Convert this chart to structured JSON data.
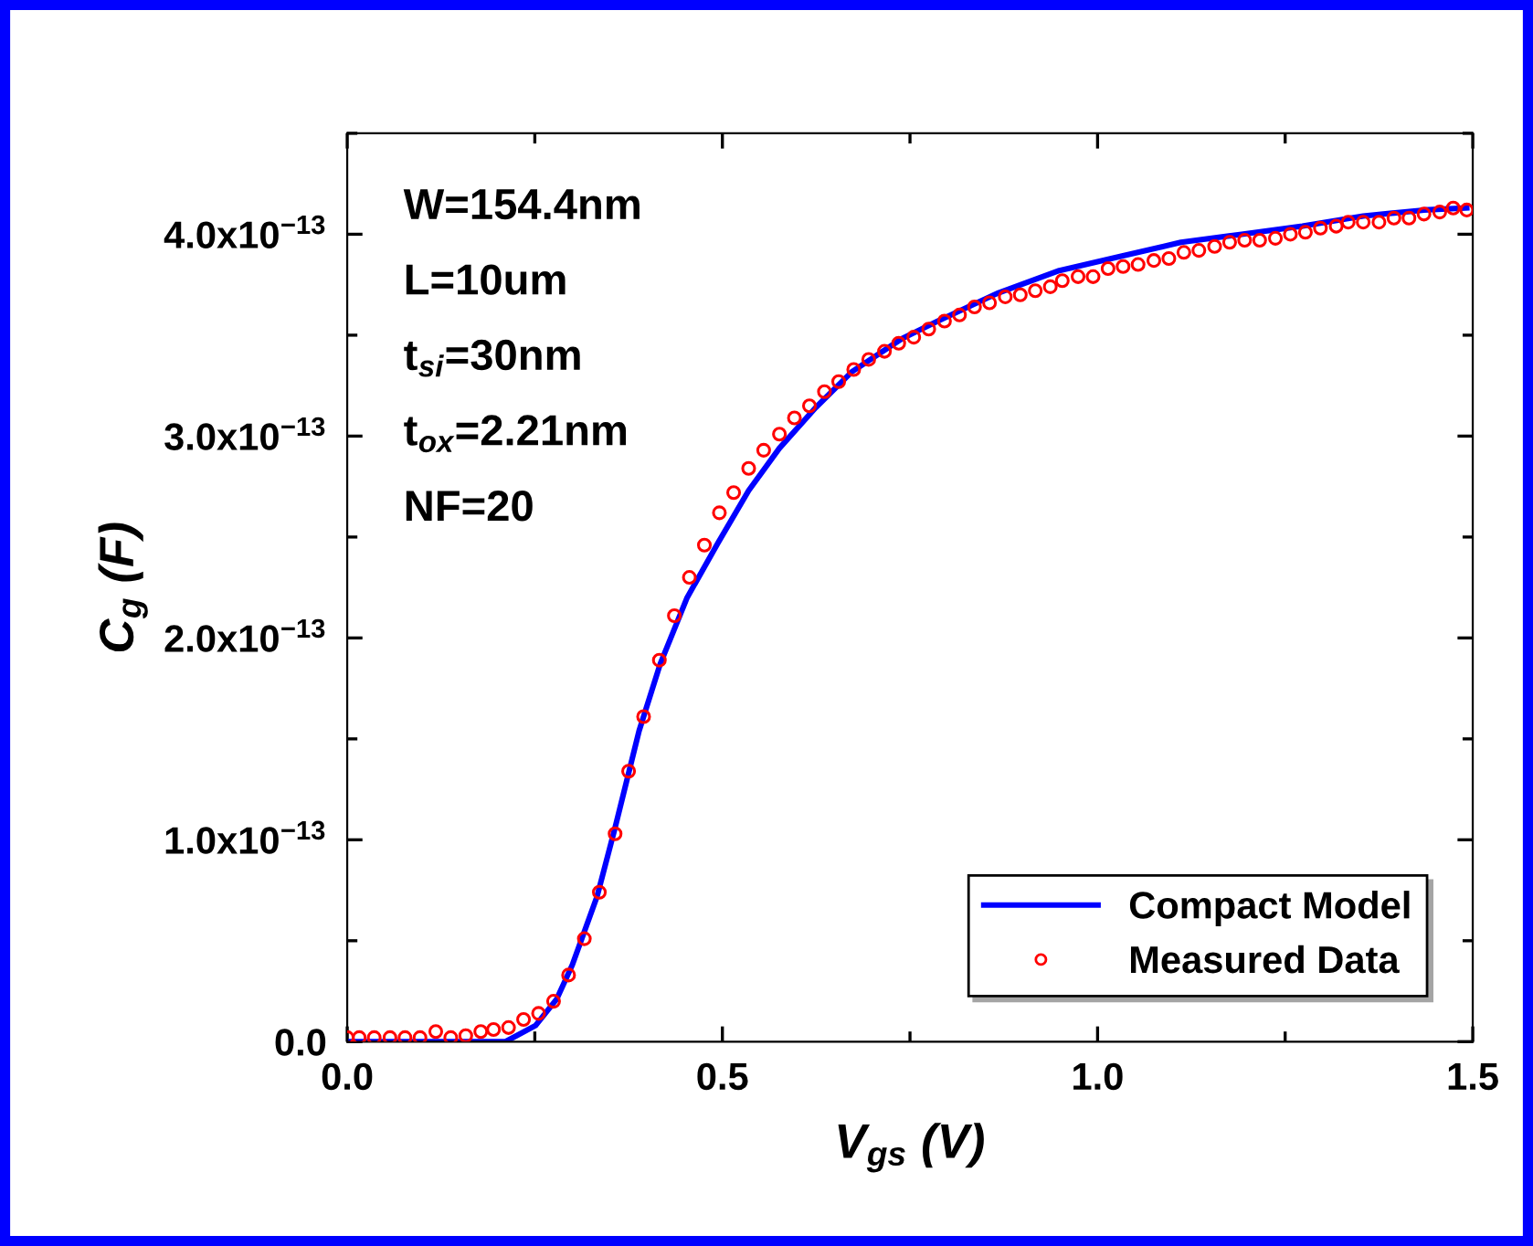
{
  "chart_data": {
    "type": "line",
    "xlabel": "V$_{gs}$ (V)",
    "ylabel": "C$_{g}$ (F)",
    "xlim": [
      0,
      1.5
    ],
    "xticks": [
      {
        "value": 0,
        "label": "0.0"
      },
      0.5,
      {
        "value": 1.0,
        "label": "1.0"
      },
      1.5
    ],
    "ylim": [
      0,
      4.5e-13
    ],
    "yticks": [
      {
        "value": 0,
        "label": "0.0"
      },
      {
        "value": 1e-13,
        "label": "1.0x10$^{−13}$"
      },
      {
        "value": 2e-13,
        "label": "2.0x10$^{−13}$"
      },
      {
        "value": 3e-13,
        "label": "3.0x10$^{−13}$"
      },
      {
        "value": 4e-13,
        "label": "4.0x10$^{−13}$"
      }
    ],
    "grid": false,
    "legend": "bottom right",
    "annotations": [
      "W=154.4nm",
      "L=10um",
      "t$_{si}$=30nm",
      "t$_{ox}$=2.21nm",
      "NF=20"
    ],
    "series": [
      {
        "name": "Compact Model",
        "color": "#0000ff",
        "marker": "none",
        "line_style": "solid",
        "x": [
          0,
          0.1,
          0.211,
          0.251,
          0.279,
          0.3,
          0.333,
          0.357,
          0.389,
          0.417,
          0.453,
          0.494,
          0.535,
          0.576,
          0.624,
          0.673,
          0.738,
          0.787,
          0.868,
          0.949,
          1.03,
          1.111,
          1.192,
          1.273,
          1.354,
          1.435,
          1.492
        ],
        "values": [
          0,
          0,
          0,
          8e-15,
          2.1e-14,
          3.8e-14,
          7.2e-14,
          1.06e-13,
          1.54e-13,
          1.87e-13,
          2.2e-13,
          2.47e-13,
          2.73e-13,
          2.94e-13,
          3.14e-13,
          3.32e-13,
          3.48e-13,
          3.57e-13,
          3.71e-13,
          3.82e-13,
          3.89e-13,
          3.96e-13,
          4e-13,
          4.04e-13,
          4.09e-13,
          4.12e-13,
          4.13e-13
        ]
      },
      {
        "name": "Measured Data",
        "type": "scatter",
        "color": "#ff0000",
        "marker": "circle",
        "x": [
          0,
          0.016,
          0.036,
          0.057,
          0.077,
          0.097,
          0.118,
          0.138,
          0.158,
          0.178,
          0.195,
          0.215,
          0.235,
          0.255,
          0.275,
          0.295,
          0.316,
          0.336,
          0.357,
          0.375,
          0.395,
          0.416,
          0.436,
          0.456,
          0.476,
          0.496,
          0.515,
          0.535,
          0.555,
          0.576,
          0.596,
          0.616,
          0.636,
          0.655,
          0.675,
          0.695,
          0.716,
          0.735,
          0.755,
          0.775,
          0.796,
          0.816,
          0.836,
          0.856,
          0.877,
          0.897,
          0.917,
          0.937,
          0.953,
          0.974,
          0.994,
          1.014,
          1.034,
          1.054,
          1.075,
          1.095,
          1.115,
          1.135,
          1.156,
          1.176,
          1.196,
          1.216,
          1.237,
          1.257,
          1.277,
          1.297,
          1.318,
          1.334,
          1.354,
          1.375,
          1.395,
          1.415,
          1.435,
          1.456,
          1.474,
          1.492
        ],
        "values": [
          2e-15,
          2e-15,
          2e-15,
          2e-15,
          2e-15,
          2e-15,
          5e-15,
          2e-15,
          3e-15,
          5e-15,
          6e-15,
          7e-15,
          1.1e-14,
          1.4e-14,
          2e-14,
          3.3e-14,
          5.1e-14,
          7.4e-14,
          1.03e-13,
          1.34e-13,
          1.61e-13,
          1.89e-13,
          2.11e-13,
          2.3e-13,
          2.46e-13,
          2.62e-13,
          2.72e-13,
          2.84e-13,
          2.93e-13,
          3.01e-13,
          3.09e-13,
          3.15e-13,
          3.22e-13,
          3.27e-13,
          3.33e-13,
          3.38e-13,
          3.42e-13,
          3.46e-13,
          3.49e-13,
          3.53e-13,
          3.57e-13,
          3.6e-13,
          3.64e-13,
          3.66e-13,
          3.69e-13,
          3.7e-13,
          3.72e-13,
          3.74e-13,
          3.77e-13,
          3.79e-13,
          3.79e-13,
          3.83e-13,
          3.84e-13,
          3.85e-13,
          3.87e-13,
          3.88e-13,
          3.91e-13,
          3.92e-13,
          3.94e-13,
          3.96e-13,
          3.97e-13,
          3.97e-13,
          3.98e-13,
          4e-13,
          4.01e-13,
          4.03e-13,
          4.04e-13,
          4.06e-13,
          4.06e-13,
          4.06e-13,
          4.08e-13,
          4.08e-13,
          4.1e-13,
          4.11e-13,
          4.13e-13,
          4.12e-13
        ]
      }
    ]
  }
}
